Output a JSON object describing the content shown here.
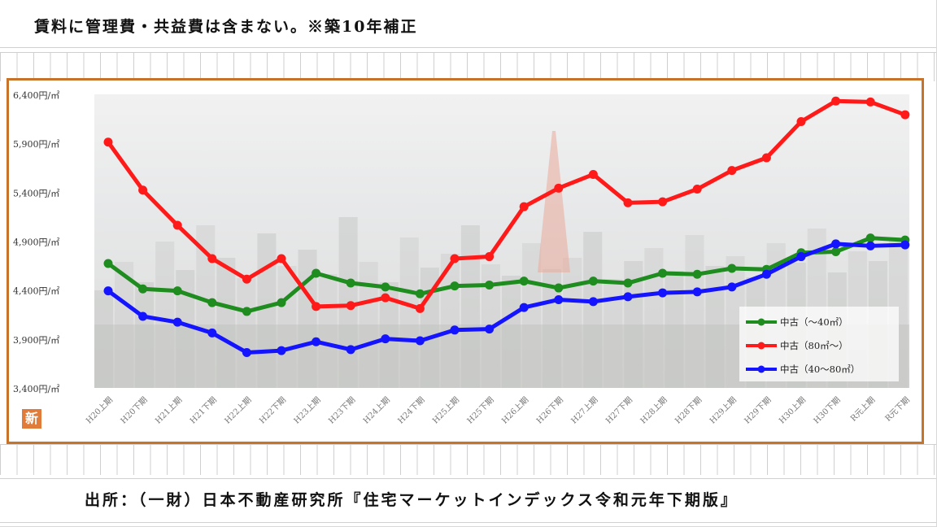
{
  "note": "賃料に管理費・共益費は含まない。※築10年補正",
  "source": "出所：（一財）日本不動産研究所『住宅マーケットインデックス令和元年下期版』",
  "badge": "新",
  "colors": {
    "frame": "#c8732a",
    "badge": "#e07b39"
  },
  "chart_data": {
    "type": "line",
    "categories": [
      "H20上期",
      "H20下期",
      "H21上期",
      "H21下期",
      "H22上期",
      "H22下期",
      "H23上期",
      "H23下期",
      "H24上期",
      "H24下期",
      "H25上期",
      "H25下期",
      "H26上期",
      "H26下期",
      "H27上期",
      "H27下期",
      "H28上期",
      "H28下期",
      "H29上期",
      "H29下期",
      "H30上期",
      "H30下期",
      "R元上期",
      "R元下期"
    ],
    "y_ticks": [
      "3,400円/㎡",
      "3,900円/㎡",
      "4,400円/㎡",
      "4,900円/㎡",
      "5,400円/㎡",
      "5,900円/㎡",
      "6,400円/㎡"
    ],
    "ylim": [
      3400,
      6400
    ],
    "legend_position": "bottom-right",
    "series": [
      {
        "name": "中古（～40㎡）",
        "color": "#1e8c1e",
        "values": [
          4680,
          4420,
          4400,
          4280,
          4190,
          4280,
          4580,
          4480,
          4440,
          4370,
          4450,
          4460,
          4500,
          4430,
          4500,
          4480,
          4580,
          4570,
          4630,
          4620,
          4790,
          4800,
          4940,
          4920
        ]
      },
      {
        "name": "中古（80㎡～）",
        "color": "#ff1a1a",
        "values": [
          5920,
          5430,
          5070,
          4730,
          4520,
          4730,
          4240,
          4250,
          4330,
          4220,
          4730,
          4750,
          5260,
          5450,
          5590,
          5300,
          5310,
          5440,
          5630,
          5760,
          6130,
          6340,
          6330,
          6200
        ]
      },
      {
        "name": "中古（40～80㎡）",
        "color": "#1414ff",
        "values": [
          4400,
          4140,
          4080,
          3970,
          3770,
          3790,
          3880,
          3800,
          3910,
          3890,
          4000,
          4010,
          4230,
          4310,
          4290,
          4340,
          4380,
          4390,
          4440,
          4570,
          4750,
          4880,
          4860,
          4870
        ]
      }
    ]
  }
}
